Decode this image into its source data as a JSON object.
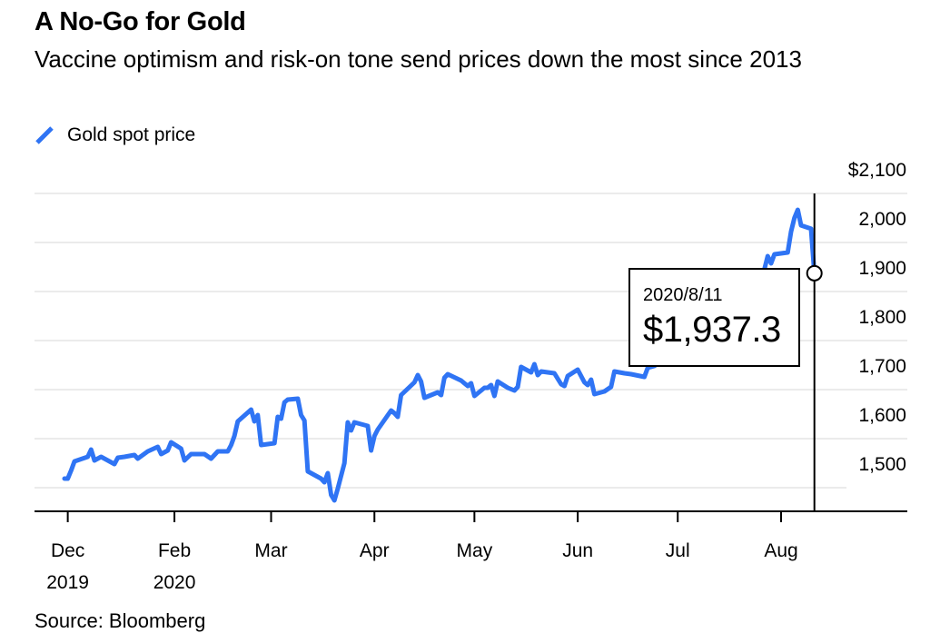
{
  "header": {
    "title": "A No-Go for Gold",
    "subtitle": "Vaccine optimism and risk-on tone send prices down the most since 2013"
  },
  "legend": {
    "label": "Gold spot price",
    "color": "#2f74f4"
  },
  "tooltip": {
    "date": "2020/8/11",
    "value": "$1,937.3"
  },
  "footer": {
    "source": "Source: Bloomberg"
  },
  "chart_data": {
    "type": "line",
    "title": "A No-Go for Gold",
    "subtitle": "Vaccine optimism and risk-on tone send prices down the most since 2013",
    "xlabel": "",
    "ylabel": "",
    "ylim": [
      1450,
      2100
    ],
    "y_ticks": [
      1500,
      1600,
      1700,
      1800,
      1900,
      2000,
      2100
    ],
    "y_tick_labels": [
      "1,500",
      "1,600",
      "1,700",
      "1,800",
      "1,900",
      "2,000",
      "$2,100"
    ],
    "y_axis_side": "right",
    "grid": true,
    "x_ticks": [
      {
        "date": "2019-12-31",
        "label": "Dec",
        "sublabel": "2019"
      },
      {
        "date": "2020-02-01",
        "label": "Feb",
        "sublabel": "2020"
      },
      {
        "date": "2020-03-01",
        "label": "Mar",
        "sublabel": ""
      },
      {
        "date": "2020-04-01",
        "label": "Apr",
        "sublabel": ""
      },
      {
        "date": "2020-05-01",
        "label": "May",
        "sublabel": ""
      },
      {
        "date": "2020-06-01",
        "label": "Jun",
        "sublabel": ""
      },
      {
        "date": "2020-07-01",
        "label": "Jul",
        "sublabel": ""
      },
      {
        "date": "2020-08-01",
        "label": "Aug",
        "sublabel": ""
      }
    ],
    "x_end": "2020-08-28",
    "legend_position": "top-left",
    "highlight": {
      "date": "2020-08-11",
      "value": 1937.3,
      "label": "2020/8/11",
      "value_label": "$1,937.3"
    },
    "series": [
      {
        "name": "Gold spot price",
        "color": "#2f74f4",
        "points": [
          [
            "2019-12-30",
            1518.5
          ],
          [
            "2019-12-31",
            1518.5
          ],
          [
            "2020-01-01",
            1535
          ],
          [
            "2020-01-02",
            1553.7
          ],
          [
            "2020-01-06",
            1563
          ],
          [
            "2020-01-07",
            1577.8
          ],
          [
            "2020-01-08",
            1555.6
          ],
          [
            "2020-01-10",
            1563
          ],
          [
            "2020-01-14",
            1548.1
          ],
          [
            "2020-01-15",
            1561.1
          ],
          [
            "2020-01-17",
            1563
          ],
          [
            "2020-01-20",
            1566.7
          ],
          [
            "2020-01-21",
            1559.3
          ],
          [
            "2020-01-24",
            1574.1
          ],
          [
            "2020-01-27",
            1583.3
          ],
          [
            "2020-01-28",
            1568.5
          ],
          [
            "2020-01-30",
            1575.9
          ],
          [
            "2020-01-31",
            1592.6
          ],
          [
            "2020-02-03",
            1579.6
          ],
          [
            "2020-02-04",
            1555.6
          ],
          [
            "2020-02-06",
            1568.5
          ],
          [
            "2020-02-10",
            1568.5
          ],
          [
            "2020-02-12",
            1559.3
          ],
          [
            "2020-02-14",
            1574.1
          ],
          [
            "2020-02-17",
            1574.1
          ],
          [
            "2020-02-18",
            1587
          ],
          [
            "2020-02-19",
            1605.6
          ],
          [
            "2020-02-20",
            1635.2
          ],
          [
            "2020-02-24",
            1659.3
          ],
          [
            "2020-02-25",
            1635.2
          ],
          [
            "2020-02-26",
            1648.1
          ],
          [
            "2020-02-27",
            1587
          ],
          [
            "2020-03-02",
            1590.7
          ],
          [
            "2020-03-03",
            1644.4
          ],
          [
            "2020-03-04",
            1640.7
          ],
          [
            "2020-03-05",
            1674.1
          ],
          [
            "2020-03-06",
            1679.6
          ],
          [
            "2020-03-09",
            1681.5
          ],
          [
            "2020-03-10",
            1648.1
          ],
          [
            "2020-03-11",
            1637
          ],
          [
            "2020-03-12",
            1533.3
          ],
          [
            "2020-03-16",
            1518.5
          ],
          [
            "2020-03-17",
            1511.1
          ],
          [
            "2020-03-18",
            1529.6
          ],
          [
            "2020-03-19",
            1485.2
          ],
          [
            "2020-03-20",
            1474.1
          ],
          [
            "2020-03-21",
            1498.1
          ],
          [
            "2020-03-23",
            1550
          ],
          [
            "2020-03-24",
            1633.3
          ],
          [
            "2020-03-25",
            1616.7
          ],
          [
            "2020-03-26",
            1633.3
          ],
          [
            "2020-03-30",
            1625.9
          ],
          [
            "2020-03-31",
            1575.9
          ],
          [
            "2020-04-01",
            1605.6
          ],
          [
            "2020-04-02",
            1618.5
          ],
          [
            "2020-04-06",
            1657.4
          ],
          [
            "2020-04-07",
            1651.9
          ],
          [
            "2020-04-08",
            1644.4
          ],
          [
            "2020-04-09",
            1688.9
          ],
          [
            "2020-04-13",
            1714.8
          ],
          [
            "2020-04-14",
            1729.6
          ],
          [
            "2020-04-15",
            1716.7
          ],
          [
            "2020-04-16",
            1683.3
          ],
          [
            "2020-04-20",
            1694.4
          ],
          [
            "2020-04-21",
            1688.9
          ],
          [
            "2020-04-22",
            1724.1
          ],
          [
            "2020-04-23",
            1731.5
          ],
          [
            "2020-04-27",
            1718.5
          ],
          [
            "2020-04-29",
            1707.4
          ],
          [
            "2020-04-30",
            1713
          ],
          [
            "2020-05-01",
            1687
          ],
          [
            "2020-05-04",
            1703.7
          ],
          [
            "2020-05-05",
            1703.7
          ],
          [
            "2020-05-06",
            1709.3
          ],
          [
            "2020-05-07",
            1687
          ],
          [
            "2020-05-08",
            1716.7
          ],
          [
            "2020-05-11",
            1703.7
          ],
          [
            "2020-05-13",
            1698.1
          ],
          [
            "2020-05-14",
            1705.6
          ],
          [
            "2020-05-15",
            1746.3
          ],
          [
            "2020-05-18",
            1735.2
          ],
          [
            "2020-05-19",
            1751.9
          ],
          [
            "2020-05-20",
            1729.6
          ],
          [
            "2020-05-21",
            1737
          ],
          [
            "2020-05-25",
            1733.3
          ],
          [
            "2020-05-27",
            1711.1
          ],
          [
            "2020-05-28",
            1707.4
          ],
          [
            "2020-05-29",
            1727.8
          ],
          [
            "2020-06-01",
            1740.7
          ],
          [
            "2020-06-03",
            1714.8
          ],
          [
            "2020-06-04",
            1709.3
          ],
          [
            "2020-06-05",
            1720.4
          ],
          [
            "2020-06-06",
            1690.7
          ],
          [
            "2020-06-09",
            1696.3
          ],
          [
            "2020-06-11",
            1705.6
          ],
          [
            "2020-06-12",
            1737
          ],
          [
            "2020-06-15",
            1733.3
          ],
          [
            "2020-06-17",
            1731.5
          ],
          [
            "2020-06-21",
            1725.9
          ],
          [
            "2020-06-22",
            1744.4
          ],
          [
            "2020-06-24",
            1748.1
          ],
          [
            "2020-06-30",
            1780
          ],
          [
            "2020-07-08",
            1810
          ],
          [
            "2020-07-15",
            1810
          ],
          [
            "2020-07-21",
            1843
          ],
          [
            "2020-07-22",
            1871
          ],
          [
            "2020-07-24",
            1902
          ],
          [
            "2020-07-27",
            1945
          ],
          [
            "2020-07-28",
            1972.2
          ],
          [
            "2020-07-29",
            1957.4
          ],
          [
            "2020-07-30",
            1975.9
          ],
          [
            "2020-08-03",
            1979.6
          ],
          [
            "2020-08-04",
            2022.2
          ],
          [
            "2020-08-05",
            2050
          ],
          [
            "2020-08-06",
            2066.7
          ],
          [
            "2020-08-07",
            2035
          ],
          [
            "2020-08-10",
            2028
          ],
          [
            "2020-08-11",
            1937.3
          ]
        ]
      }
    ]
  }
}
